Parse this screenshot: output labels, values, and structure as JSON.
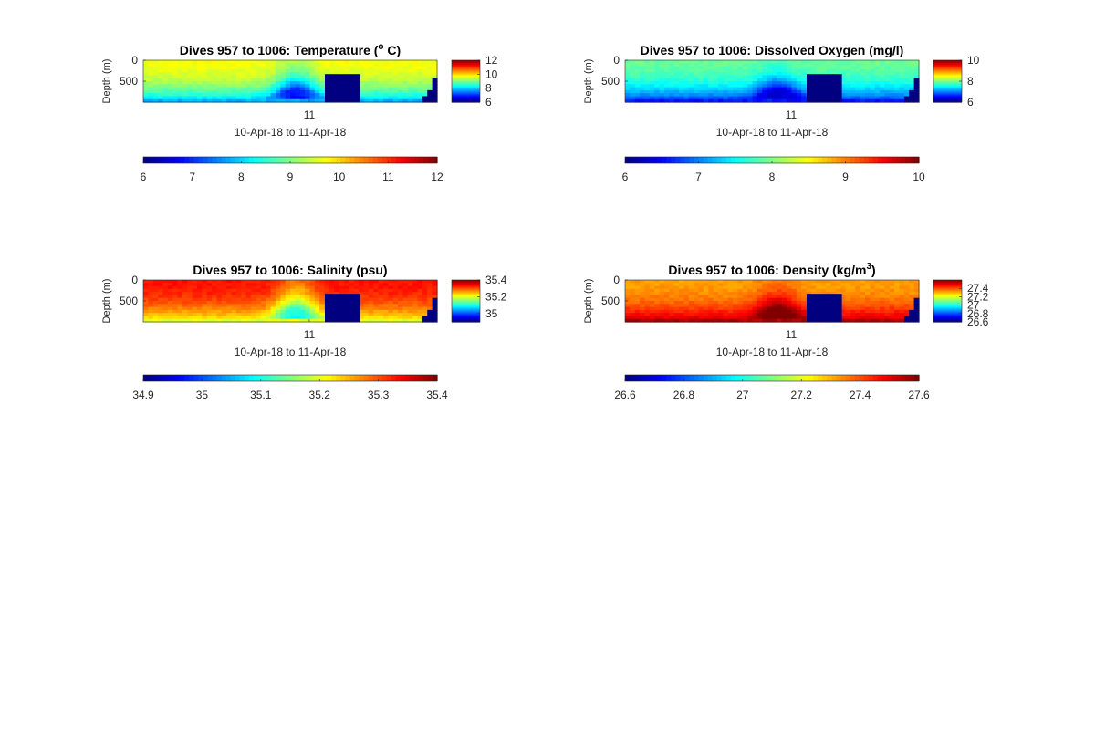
{
  "chart_data": [
    {
      "type": "heatmap",
      "title_main": "Dives 957 to 1006: Temperature (",
      "title_sup": "o",
      "title_tail": " C)",
      "ylabel": "Depth (m)",
      "xtick": "11",
      "xlabel": "10-Apr-18 to 11-Apr-18",
      "ylim": [
        0,
        1000
      ],
      "yticks": [
        "0",
        "500"
      ],
      "colorbar_side_ticks": [
        "12",
        "10",
        "8",
        "6"
      ],
      "colorbar_bottom_ticks": [
        "6",
        "7",
        "8",
        "9",
        "10",
        "11",
        "12"
      ],
      "crange": [
        6,
        12
      ],
      "surface_value": 9.7,
      "deep_value": 7.8,
      "mound_peak_value": 8.3,
      "gap_value": 6,
      "corner_value": 6
    },
    {
      "type": "heatmap",
      "title_main": "Dives 957 to 1006: Dissolved Oxygen (mg/l)",
      "title_sup": "",
      "title_tail": "",
      "ylabel": "Depth (m)",
      "xtick": "11",
      "xlabel": "10-Apr-18 to 11-Apr-18",
      "ylim": [
        0,
        1000
      ],
      "yticks": [
        "0",
        "500"
      ],
      "colorbar_side_ticks": [
        "10",
        "8",
        "6"
      ],
      "colorbar_bottom_ticks": [
        "6",
        "7",
        "8",
        "9",
        "10"
      ],
      "crange": [
        6,
        10
      ],
      "surface_value": 7.9,
      "deep_value": 6.6,
      "mound_peak_value": 7.5,
      "gap_value": 6,
      "corner_value": 6
    },
    {
      "type": "heatmap",
      "title_main": "Dives 957 to 1006: Salinity (psu)",
      "title_sup": "",
      "title_tail": "",
      "ylabel": "Depth (m)",
      "xtick": "11",
      "xlabel": "10-Apr-18 to 11-Apr-18",
      "ylim": [
        0,
        1000
      ],
      "yticks": [
        "0",
        "500"
      ],
      "colorbar_side_ticks": [
        "35.4",
        "35.2",
        "35"
      ],
      "colorbar_bottom_ticks": [
        "34.9",
        "35",
        "35.1",
        "35.2",
        "35.3",
        "35.4"
      ],
      "crange": [
        34.9,
        35.4
      ],
      "surface_value": 35.33,
      "deep_value": 35.2,
      "mound_peak_value": 35.18,
      "gap_value": 34.9,
      "corner_value": 34.9
    },
    {
      "type": "heatmap",
      "title_main": "Dives 957 to 1006: Density (kg/m",
      "title_sup": "3",
      "title_tail": ")",
      "ylabel": "Depth (m)",
      "xtick": "11",
      "xlabel": "10-Apr-18 to 11-Apr-18",
      "ylim": [
        0,
        1000
      ],
      "yticks": [
        "0",
        "500"
      ],
      "colorbar_side_ticks": [
        "27.4",
        "27.2",
        "27",
        "26.8",
        "26.6"
      ],
      "colorbar_bottom_ticks": [
        "26.6",
        "26.8",
        "27",
        "27.2",
        "27.4",
        "27.6"
      ],
      "crange": [
        26.6,
        27.6
      ],
      "surface_value": 27.32,
      "deep_value": 27.55,
      "mound_peak_value": 27.45,
      "gap_value": 26.6,
      "corner_value": 26.6
    }
  ]
}
